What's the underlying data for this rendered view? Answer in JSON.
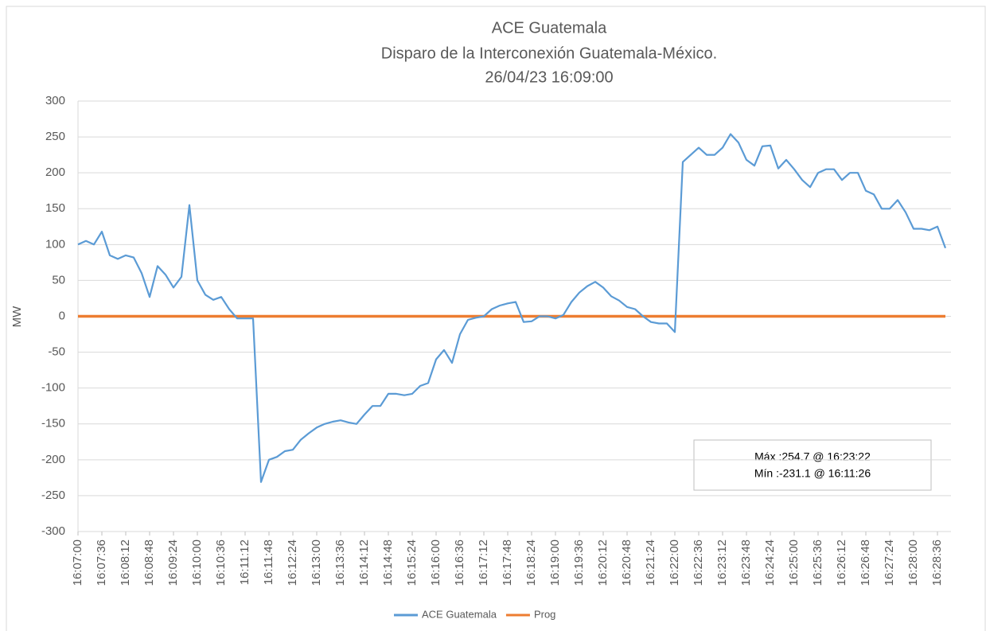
{
  "chart_data": {
    "type": "line",
    "title": "ACE Guatemala",
    "subtitle": "Disparo de la Interconexión Guatemala-México.",
    "subtitle2": "26/04/23 16:09:00",
    "y_label": "MW",
    "annotations": [
      "Máx :254.7 @ 16:23:22",
      "Mín :-231.1 @ 16:11:26"
    ],
    "categories": [
      "16:07:00",
      null,
      null,
      "16:07:36",
      null,
      null,
      "16:08:12",
      null,
      null,
      "16:08:48",
      null,
      null,
      "16:09:24",
      null,
      null,
      "16:10:00",
      null,
      null,
      "16:10:36",
      null,
      null,
      "16:11:12",
      null,
      null,
      "16:11:48",
      null,
      null,
      "16:12:24",
      null,
      null,
      "16:13:00",
      null,
      null,
      "16:13:36",
      null,
      null,
      "16:14:12",
      null,
      null,
      "16:14:48",
      null,
      null,
      "16:15:24",
      null,
      null,
      "16:16:00",
      null,
      null,
      "16:16:36",
      null,
      null,
      "16:17:12",
      null,
      null,
      "16:17:48",
      null,
      null,
      "16:18:24",
      null,
      null,
      "16:19:00",
      null,
      null,
      "16:19:36",
      null,
      null,
      "16:20:12",
      null,
      null,
      "16:20:48",
      null,
      null,
      "16:21:24",
      null,
      null,
      "16:22:00",
      null,
      null,
      "16:22:36",
      null,
      null,
      "16:23:12",
      null,
      null,
      "16:23:48",
      null,
      null,
      "16:24:24",
      null,
      null,
      "16:25:00",
      null,
      null,
      "16:25:36",
      null,
      null,
      "16:26:12",
      null,
      null,
      "16:26:48",
      null,
      null,
      "16:27:24",
      null,
      null,
      "16:28:00",
      null,
      null,
      "16:28:36",
      null
    ],
    "series": [
      {
        "name": "ACE Guatemala",
        "color": "#5b9bd5",
        "values": [
          100,
          105,
          100,
          118,
          85,
          80,
          85,
          82,
          60,
          27,
          70,
          58,
          40,
          55,
          155,
          50,
          30,
          23,
          27,
          10,
          -3,
          -3,
          -3,
          -231,
          -200,
          -196,
          -188,
          -186,
          -172,
          -163,
          -155,
          -150,
          -147,
          -145,
          -148,
          -150,
          -137,
          -125,
          -125,
          -108,
          -108,
          -110,
          -108,
          -97,
          -93,
          -60,
          -47,
          -65,
          -25,
          -5,
          -2,
          0,
          10,
          15,
          18,
          20,
          -8,
          -7,
          0,
          0,
          -3,
          2,
          20,
          33,
          42,
          48,
          40,
          28,
          22,
          13,
          10,
          0,
          -8,
          -10,
          -10,
          -22,
          215,
          225,
          235,
          225,
          225,
          235,
          254,
          242,
          218,
          210,
          237,
          238,
          206,
          218,
          205,
          190,
          180,
          200,
          205,
          205,
          190,
          200,
          200,
          175,
          170,
          150,
          150,
          162,
          145,
          122,
          122,
          120,
          125,
          95
        ]
      },
      {
        "name": "Prog",
        "color": "#ed7d31",
        "values": [
          0,
          0,
          0,
          0,
          0,
          0,
          0,
          0,
          0,
          0,
          0,
          0,
          0,
          0,
          0,
          0,
          0,
          0,
          0,
          0,
          0,
          0,
          0,
          0,
          0,
          0,
          0,
          0,
          0,
          0,
          0,
          0,
          0,
          0,
          0,
          0,
          0,
          0,
          0,
          0,
          0,
          0,
          0,
          0,
          0,
          0,
          0,
          0,
          0,
          0,
          0,
          0,
          0,
          0,
          0,
          0,
          0,
          0,
          0,
          0,
          0,
          0,
          0,
          0,
          0,
          0,
          0,
          0,
          0,
          0,
          0,
          0,
          0,
          0,
          0,
          0,
          0,
          0,
          0,
          0,
          0,
          0,
          0,
          0,
          0,
          0,
          0,
          0,
          0,
          0,
          0,
          0,
          0,
          0,
          0,
          0,
          0,
          0,
          0,
          0,
          0,
          0,
          0,
          0,
          0,
          0,
          0,
          0,
          0,
          0
        ]
      }
    ],
    "ylim": [
      -300,
      300
    ],
    "yticks": [
      -300,
      -250,
      -200,
      -150,
      -100,
      -50,
      0,
      50,
      100,
      150,
      200,
      250,
      300
    ],
    "grid": true,
    "legend": "bottom"
  }
}
